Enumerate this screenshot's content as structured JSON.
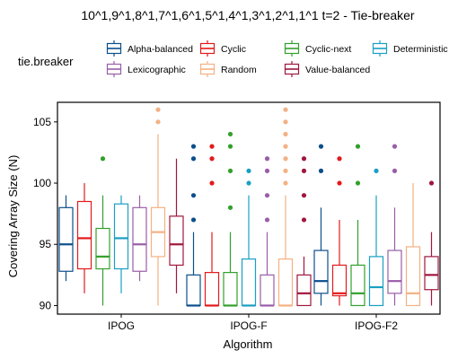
{
  "chart_data": {
    "type": "boxplot",
    "title": "10^1,9^1,8^1,7^1,6^1,5^1,4^1,3^1,2^1,1^1 t=2 - Tie-breaker",
    "xlabel": "Algorithm",
    "ylabel": "Covering Array Size (N)",
    "ylim": [
      89.3,
      106.6
    ],
    "yticks": [
      90,
      95,
      100,
      105
    ],
    "categories": [
      "IPOG",
      "IPOG-F",
      "IPOG-F2"
    ],
    "legend": {
      "title": "tie.breaker",
      "placement": "top"
    },
    "series": [
      {
        "name": "Alpha-balanced",
        "color": "#0b4f8c",
        "boxes": [
          {
            "q1": 92.8,
            "median": 95,
            "q3": 98,
            "whisker_low": 92,
            "whisker_high": 99,
            "outliers": []
          },
          {
            "q1": 90,
            "median": 90,
            "q3": 92.5,
            "whisker_low": 90,
            "whisker_high": 96,
            "outliers": [
              97,
              99,
              102,
              103
            ]
          },
          {
            "q1": 91,
            "median": 92,
            "q3": 94.5,
            "whisker_low": 90,
            "whisker_high": 98,
            "outliers": [
              101,
              103
            ]
          }
        ]
      },
      {
        "name": "Cyclic",
        "color": "#e31a1c",
        "boxes": [
          {
            "q1": 93,
            "median": 95.5,
            "q3": 98.5,
            "whisker_low": 91,
            "whisker_high": 100,
            "outliers": []
          },
          {
            "q1": 90,
            "median": 90,
            "q3": 92.7,
            "whisker_low": 90,
            "whisker_high": 96,
            "outliers": [
              100,
              102,
              103
            ]
          },
          {
            "q1": 90.8,
            "median": 91,
            "q3": 93.3,
            "whisker_low": 90,
            "whisker_high": 97,
            "outliers": [
              100,
              102
            ]
          }
        ]
      },
      {
        "name": "Cyclic-next",
        "color": "#33a02c",
        "boxes": [
          {
            "q1": 93,
            "median": 94,
            "q3": 96.3,
            "whisker_low": 90,
            "whisker_high": 99,
            "outliers": [
              102
            ]
          },
          {
            "q1": 90,
            "median": 90,
            "q3": 92.7,
            "whisker_low": 90,
            "whisker_high": 96,
            "outliers": [
              98,
              101,
              103,
              104
            ]
          },
          {
            "q1": 90,
            "median": 91,
            "q3": 93.3,
            "whisker_low": 90,
            "whisker_high": 97,
            "outliers": [
              100,
              103
            ]
          }
        ]
      },
      {
        "name": "Deterministic",
        "color": "#1a9fc4",
        "boxes": [
          {
            "q1": 93,
            "median": 95.5,
            "q3": 98.3,
            "whisker_low": 91,
            "whisker_high": 99,
            "outliers": []
          },
          {
            "q1": 90,
            "median": 90,
            "q3": 93.8,
            "whisker_low": 90,
            "whisker_high": 99,
            "outliers": [
              100,
              101
            ]
          },
          {
            "q1": 90,
            "median": 91.5,
            "q3": 94,
            "whisker_low": 90,
            "whisker_high": 99,
            "outliers": [
              101
            ]
          }
        ]
      },
      {
        "name": "Lexicographic",
        "color": "#9a5ea8",
        "boxes": [
          {
            "q1": 92.8,
            "median": 95,
            "q3": 98,
            "whisker_low": 92,
            "whisker_high": 99,
            "outliers": []
          },
          {
            "q1": 90,
            "median": 90,
            "q3": 92.5,
            "whisker_low": 90,
            "whisker_high": 96,
            "outliers": [
              97,
              99,
              101,
              102
            ]
          },
          {
            "q1": 91,
            "median": 92,
            "q3": 94.5,
            "whisker_low": 90,
            "whisker_high": 98,
            "outliers": [
              101,
              103
            ]
          }
        ]
      },
      {
        "name": "Random",
        "color": "#f4b183",
        "boxes": [
          {
            "q1": 94,
            "median": 96,
            "q3": 98,
            "whisker_low": 90,
            "whisker_high": 104,
            "outliers": [
              105,
              106
            ]
          },
          {
            "q1": 90,
            "median": 90,
            "q3": 93.8,
            "whisker_low": 90,
            "whisker_high": 99,
            "outliers": [
              100,
              101,
              102,
              103,
              104,
              105,
              106
            ]
          },
          {
            "q1": 90,
            "median": 91,
            "q3": 94.8,
            "whisker_low": 90,
            "whisker_high": 100,
            "outliers": []
          }
        ]
      },
      {
        "name": "Value-balanced",
        "color": "#a0173d",
        "boxes": [
          {
            "q1": 93.3,
            "median": 95,
            "q3": 97.3,
            "whisker_low": 91,
            "whisker_high": 102,
            "outliers": []
          },
          {
            "q1": 90,
            "median": 91,
            "q3": 92.5,
            "whisker_low": 90,
            "whisker_high": 94,
            "outliers": [
              97,
              99,
              101,
              102
            ]
          },
          {
            "q1": 91.3,
            "median": 92.5,
            "q3": 94,
            "whisker_low": 90,
            "whisker_high": 96,
            "outliers": [
              100
            ]
          }
        ]
      }
    ]
  }
}
